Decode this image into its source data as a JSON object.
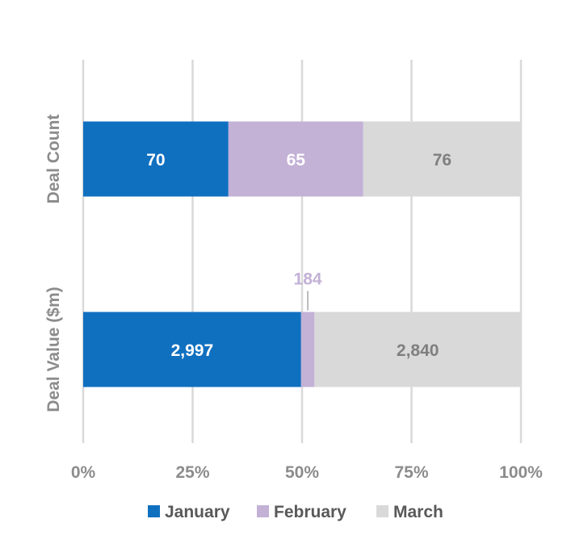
{
  "chart_data": {
    "type": "bar",
    "orientation": "horizontal",
    "stacked": "percent",
    "categories": [
      "Deal Count",
      "Deal Value ($m)"
    ],
    "series": [
      {
        "name": "January",
        "values": [
          70,
          2997
        ],
        "labels": [
          "70",
          "2,997"
        ],
        "color": "#1070c0",
        "label_color": "#ffffff"
      },
      {
        "name": "February",
        "values": [
          65,
          184
        ],
        "labels": [
          "65",
          "184"
        ],
        "color": "#c3b1d6",
        "label_color": "#ffffff"
      },
      {
        "name": "March",
        "values": [
          76,
          2840
        ],
        "labels": [
          "76",
          "2,840"
        ],
        "color": "#d9d9d9",
        "label_color": "#7f7f7f"
      }
    ],
    "xlim": [
      0,
      100
    ],
    "x_ticks": [
      "0%",
      "25%",
      "50%",
      "75%",
      "100%"
    ],
    "grid": true,
    "legend_position": "bottom",
    "gridline_color": "#d9d9d9",
    "callout_color": "#c3b1d6"
  }
}
